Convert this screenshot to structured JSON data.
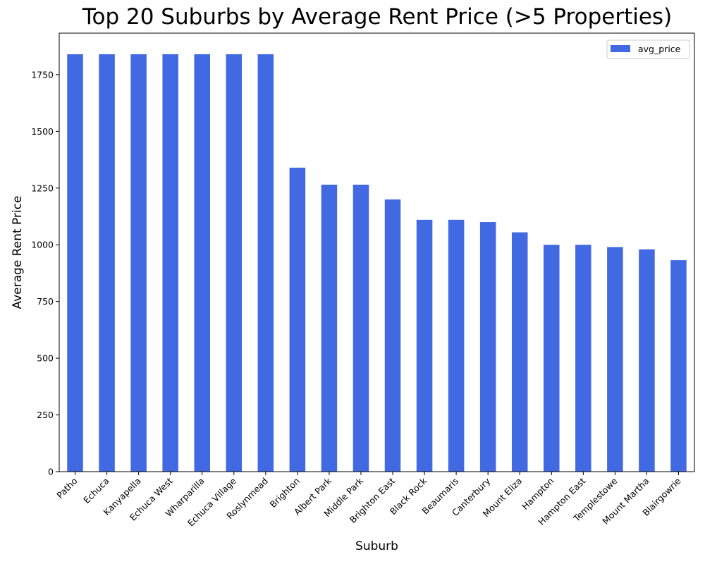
{
  "chart_data": {
    "type": "bar",
    "title": "Top 20 Suburbs by Average Rent Price (>5 Properties)",
    "xlabel": "Suburb",
    "ylabel": "Average Rent Price",
    "categories": [
      "Patho",
      "Echuca",
      "Kanyapella",
      "Echuca West",
      "Wharparilla",
      "Echuca Village",
      "Roslynmead",
      "Brighton",
      "Albert Park",
      "Middle Park",
      "Brighton East",
      "Black Rock",
      "Beaumaris",
      "Canterbury",
      "Mount Eliza",
      "Hampton",
      "Hampton East",
      "Templestowe",
      "Mount Martha",
      "Blairgowrie"
    ],
    "series": [
      {
        "name": "avg_price",
        "color": "#4169e1",
        "values": [
          1840,
          1840,
          1840,
          1840,
          1840,
          1840,
          1840,
          1340,
          1265,
          1265,
          1200,
          1110,
          1110,
          1100,
          1055,
          1000,
          1000,
          990,
          980,
          932
        ]
      }
    ],
    "ylim": [
      0,
      1933
    ],
    "yticks": [
      0,
      250,
      500,
      750,
      1000,
      1250,
      1500,
      1750
    ],
    "legend_position": "top-right",
    "grid": false
  }
}
